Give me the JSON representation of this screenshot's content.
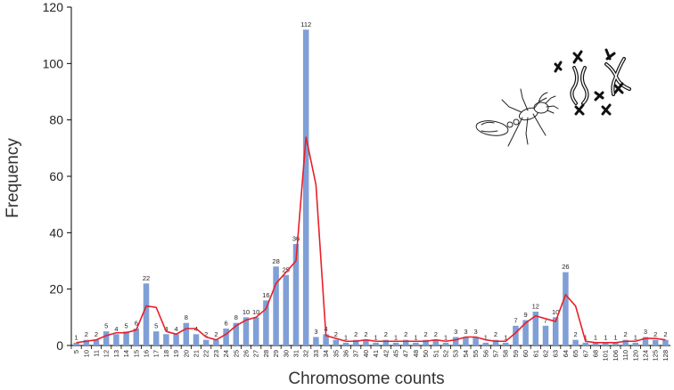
{
  "chart_data": {
    "type": "bar",
    "title": "",
    "xlabel": "Chromosome counts",
    "ylabel": "Frequency",
    "ylim": [
      0,
      120
    ],
    "yticks": [
      "0",
      "20",
      "40",
      "60",
      "80",
      "100",
      "120"
    ],
    "grid": false,
    "legend": "none",
    "bar_color": "#7f9fd6",
    "line_color": "#e8202a",
    "categories": [
      "5",
      "10",
      "11",
      "12",
      "13",
      "14",
      "15",
      "16",
      "17",
      "18",
      "19",
      "20",
      "21",
      "22",
      "23",
      "24",
      "25",
      "26",
      "27",
      "28",
      "29",
      "30",
      "31",
      "32",
      "33",
      "34",
      "35",
      "36",
      "37",
      "40",
      "41",
      "42",
      "45",
      "47",
      "48",
      "50",
      "51",
      "52",
      "53",
      "54",
      "55",
      "56",
      "57",
      "58",
      "59",
      "60",
      "61",
      "62",
      "63",
      "64",
      "65",
      "67",
      "68",
      "101",
      "106",
      "110",
      "120",
      "124",
      "125",
      "128"
    ],
    "series": [
      {
        "type": "bar",
        "values": [
          1,
          2,
          2,
          5,
          4,
          5,
          6,
          22,
          5,
          4,
          4,
          8,
          4,
          2,
          2,
          6,
          8,
          10,
          10,
          16,
          28,
          25,
          36,
          112,
          3,
          4,
          2,
          1,
          2,
          2,
          1,
          2,
          1,
          2,
          1,
          2,
          2,
          1,
          3,
          3,
          3,
          1,
          2,
          1,
          7,
          9,
          12,
          7,
          10,
          26,
          2,
          1,
          1,
          1,
          1,
          2,
          1,
          3,
          2,
          2
        ],
        "labels": [
          "1",
          "2",
          "2",
          "5",
          "4",
          "5",
          "6",
          "22",
          "5",
          "4",
          "4",
          "8",
          "4",
          "2",
          "2",
          "6",
          "8",
          "10",
          "10",
          "16",
          "28",
          "25",
          "36",
          "112",
          "3",
          "4",
          "2",
          "1",
          "2",
          "2",
          "1",
          "2",
          "1",
          "2",
          "1",
          "2",
          "2",
          "1",
          "3",
          "3",
          "3",
          "1",
          "2",
          "1",
          "7",
          "9",
          "12",
          "7",
          "10",
          "26",
          "2",
          "1",
          "1",
          "1",
          "1",
          "2",
          "1",
          "3",
          "2",
          "2"
        ]
      },
      {
        "type": "line",
        "values": [
          1,
          1.5,
          2,
          3.5,
          4.5,
          4.5,
          5.5,
          14,
          13.5,
          5,
          4,
          6,
          6,
          3,
          2,
          4,
          7,
          9,
          10,
          13,
          22,
          26,
          30,
          74,
          57,
          3.5,
          2.5,
          1.5,
          1.5,
          2,
          1.5,
          1.5,
          1.5,
          1.5,
          1.5,
          1.5,
          2,
          1.5,
          2,
          3,
          3,
          2,
          1.5,
          1.5,
          4.5,
          8,
          10.5,
          9.5,
          8.5,
          18,
          14,
          1.5,
          1,
          1,
          1,
          1.5,
          1.5,
          2.5,
          2.5,
          2
        ]
      }
    ]
  },
  "illustration": {
    "ant": "ant-icon",
    "chromosomes": "chromosome-icon"
  }
}
